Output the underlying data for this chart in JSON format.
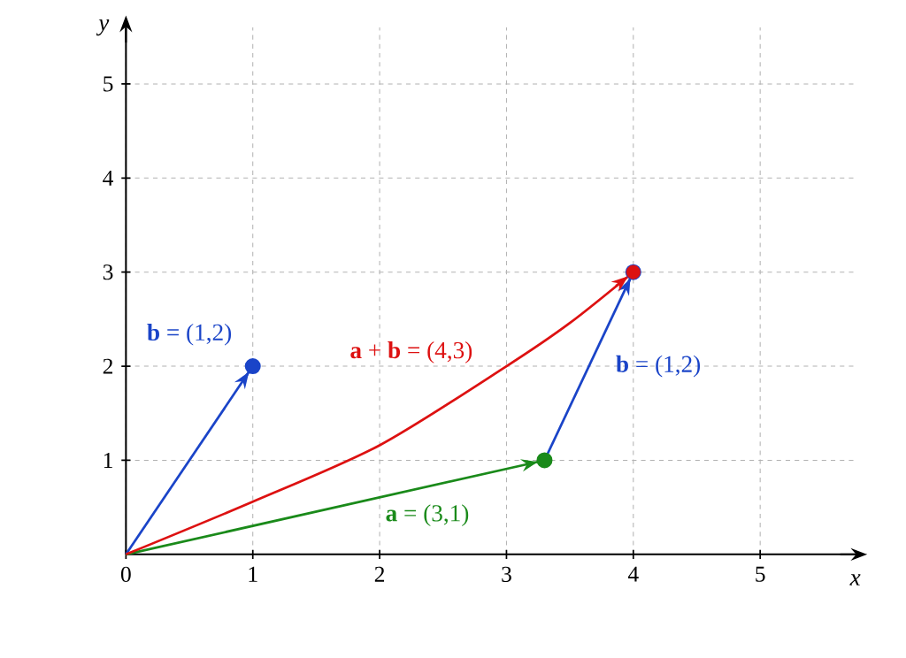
{
  "chart_data": {
    "type": "line",
    "xlabel": "x",
    "ylabel": "y",
    "xlim": [
      0,
      5.75
    ],
    "ylim": [
      0,
      5.6
    ],
    "xticks": [
      {
        "value": 0,
        "label": "0"
      },
      1,
      2,
      3,
      4,
      5
    ],
    "yticks": [
      1,
      2,
      3,
      4,
      5
    ],
    "grid": true,
    "marker": "circle",
    "line_style": "solid",
    "series": [
      {
        "name": "**a** = (3,1)",
        "color": "#1a8a1a",
        "x": [
          0,
          3.3
        ],
        "values": [
          0,
          1
        ]
      },
      {
        "name": "**b** = (1,2)",
        "color": "#1a44c8",
        "x": [
          0,
          1
        ],
        "values": [
          0,
          2
        ]
      },
      {
        "name": "**b** = (1,2)",
        "color": "#1a44c8",
        "x": [
          3.3,
          4
        ],
        "values": [
          1,
          3
        ]
      },
      {
        "name": "**a** + **b** = (4,3)",
        "color": "#dd1111",
        "marker": "none",
        "x": [
          0,
          1,
          2,
          3,
          3.5,
          4
        ],
        "values": [
          0,
          0.56,
          1.16,
          2.0,
          2.46,
          3
        ]
      },
      {
        "type": "scatter",
        "color": "#dd1111",
        "x": [
          4
        ],
        "values": [
          3
        ]
      }
    ]
  }
}
